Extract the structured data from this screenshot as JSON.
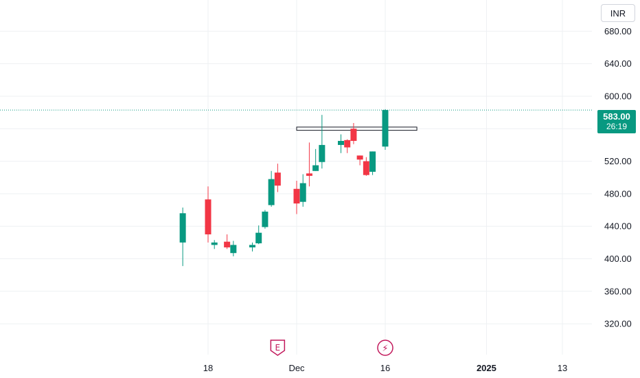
{
  "currency": {
    "label": "INR"
  },
  "last_price": {
    "value": "583.00",
    "countdown": "26:19"
  },
  "colors": {
    "up": "#089981",
    "down": "#f23645",
    "grid": "#eef0f3",
    "event_icon": "#c2185b",
    "price_line": "#089981"
  },
  "events": [
    {
      "icon": "earnings-icon",
      "glyph": "E",
      "date": "2024-11-29"
    },
    {
      "icon": "lightning-icon",
      "glyph": "⚡",
      "date": "2024-12-16"
    }
  ],
  "chart_data": {
    "type": "candlestick",
    "title": "",
    "y_ticks": [
      "680.00",
      "640.00",
      "600.00",
      "560.00",
      "520.00",
      "480.00",
      "440.00",
      "400.00",
      "360.00",
      "320.00"
    ],
    "ylim": [
      296,
      712
    ],
    "x_ticks": [
      {
        "label": "18",
        "date": "2024-11-18",
        "bold": false
      },
      {
        "label": "Dec",
        "date": "2024-12-02",
        "bold": false
      },
      {
        "label": "16",
        "date": "2024-12-16",
        "bold": false
      },
      {
        "label": "2025",
        "date": "2025-01-01",
        "bold": true
      },
      {
        "label": "13",
        "date": "2025-01-13",
        "bold": false
      }
    ],
    "grid": true,
    "candles": [
      {
        "date": "2024-11-14",
        "open": 420,
        "high": 463,
        "low": 391,
        "close": 456
      },
      {
        "date": "2024-11-18",
        "open": 473,
        "high": 489,
        "low": 420,
        "close": 430
      },
      {
        "date": "2024-11-19",
        "open": 417,
        "high": 423,
        "low": 412,
        "close": 420
      },
      {
        "date": "2024-11-21",
        "open": 421,
        "high": 430,
        "low": 412,
        "close": 414
      },
      {
        "date": "2024-11-22",
        "open": 407,
        "high": 422,
        "low": 403,
        "close": 417
      },
      {
        "date": "2024-11-25",
        "open": 414,
        "high": 420,
        "low": 409,
        "close": 417
      },
      {
        "date": "2024-11-26",
        "open": 419,
        "high": 441,
        "low": 418,
        "close": 432
      },
      {
        "date": "2024-11-27",
        "open": 439,
        "high": 460,
        "low": 437,
        "close": 458
      },
      {
        "date": "2024-11-28",
        "open": 466,
        "high": 508,
        "low": 464,
        "close": 498
      },
      {
        "date": "2024-11-29",
        "open": 506,
        "high": 517,
        "low": 482,
        "close": 490
      },
      {
        "date": "2024-12-02",
        "open": 486,
        "high": 496,
        "low": 455,
        "close": 468
      },
      {
        "date": "2024-12-03",
        "open": 470,
        "high": 504,
        "low": 464,
        "close": 493
      },
      {
        "date": "2024-12-04",
        "open": 505,
        "high": 543,
        "low": 489,
        "close": 502
      },
      {
        "date": "2024-12-05",
        "open": 508,
        "high": 535,
        "low": 508,
        "close": 515
      },
      {
        "date": "2024-12-06",
        "open": 519,
        "high": 577,
        "low": 511,
        "close": 540
      },
      {
        "date": "2024-12-09",
        "open": 540,
        "high": 553,
        "low": 530,
        "close": 545
      },
      {
        "date": "2024-12-10",
        "open": 546,
        "high": 547,
        "low": 530,
        "close": 537
      },
      {
        "date": "2024-12-11",
        "open": 560,
        "high": 567,
        "low": 541,
        "close": 545
      },
      {
        "date": "2024-12-12",
        "open": 527,
        "high": 527,
        "low": 515,
        "close": 522
      },
      {
        "date": "2024-12-13",
        "open": 520,
        "high": 525,
        "low": 502,
        "close": 503
      },
      {
        "date": "2024-12-14",
        "open": 507,
        "high": 532,
        "low": 503,
        "close": 532
      },
      {
        "date": "2024-12-16",
        "open": 538,
        "high": 584,
        "low": 534,
        "close": 583
      }
    ],
    "range_box": {
      "x_start": "2024-12-02",
      "x_end": "2024-12-21",
      "y_low": 558,
      "y_high": 562
    }
  }
}
